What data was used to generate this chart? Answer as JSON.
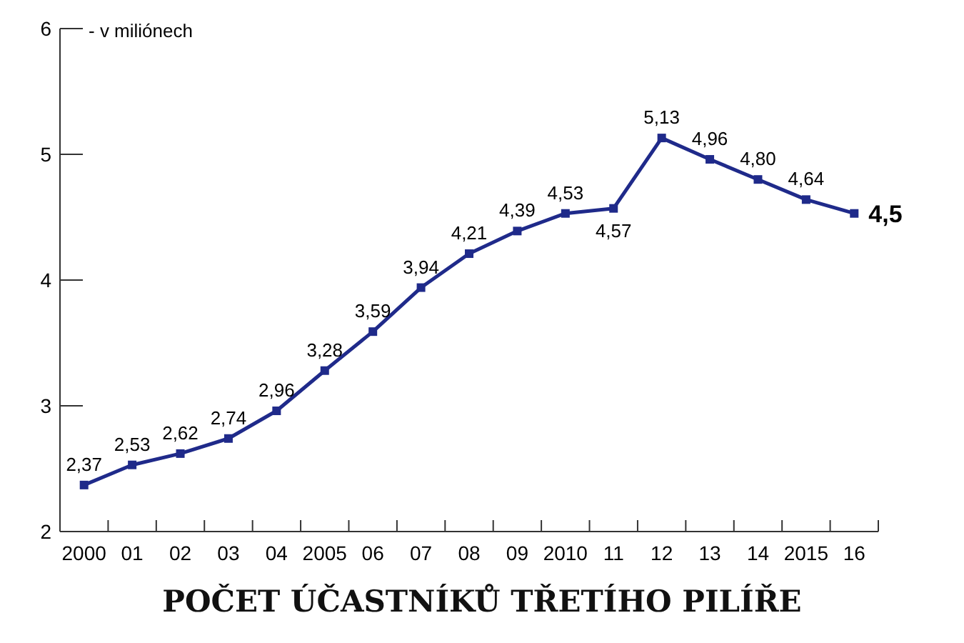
{
  "chart_data": {
    "type": "line",
    "title": "POČET ÚČASTNÍKŮ TŘETÍHO PILÍŘE",
    "annotations": [
      "- v miliónech"
    ],
    "categories": [
      "2000",
      "01",
      "02",
      "03",
      "04",
      "2005",
      "06",
      "07",
      "08",
      "09",
      "2010",
      "11",
      "12",
      "13",
      "14",
      "2015",
      "16"
    ],
    "series": [
      {
        "color": "#1f2a8a",
        "values": [
          2.37,
          2.53,
          2.62,
          2.74,
          2.96,
          3.28,
          3.59,
          3.94,
          4.21,
          4.39,
          4.53,
          4.57,
          5.13,
          4.96,
          4.8,
          4.64,
          4.53
        ],
        "value_labels": [
          "2,37",
          "2,53",
          "2,62",
          "2,74",
          "2,96",
          "3,28",
          "3,59",
          "3,94",
          "4,21",
          "4,39",
          "4,53",
          "4,57",
          "5,13",
          "4,96",
          "4,80",
          "4,64",
          "4,5"
        ]
      }
    ],
    "ylim": [
      2,
      6
    ],
    "yticks": [
      2,
      3,
      4,
      5,
      6
    ],
    "grid": false,
    "marker": "square",
    "line_style": "solid"
  }
}
